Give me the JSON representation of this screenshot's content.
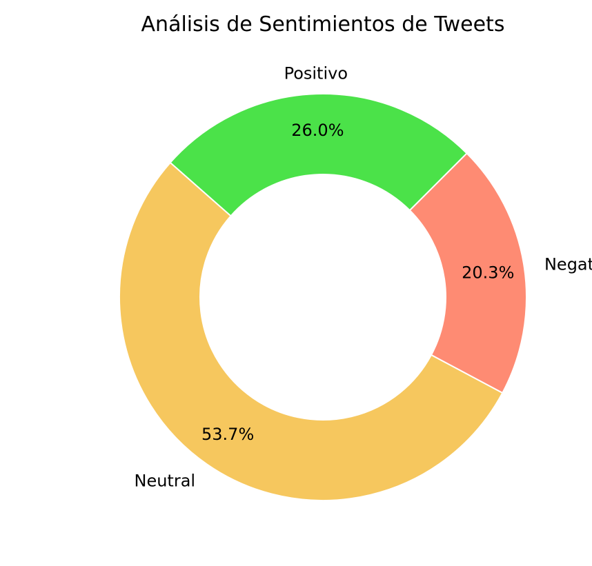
{
  "chart_data": {
    "type": "pie",
    "subtype": "donut",
    "title": "Análisis de Sentimientos de Tweets",
    "categories": [
      "Positivo",
      "Neutral",
      "Negativo"
    ],
    "values": [
      26.0,
      53.7,
      20.3
    ],
    "percent_labels": [
      "26.0%",
      "53.7%",
      "20.3%"
    ],
    "colors": [
      "#4be249",
      "#f6c75e",
      "#fe8b73"
    ],
    "edge_color": "#ffffff",
    "legend": "none"
  }
}
